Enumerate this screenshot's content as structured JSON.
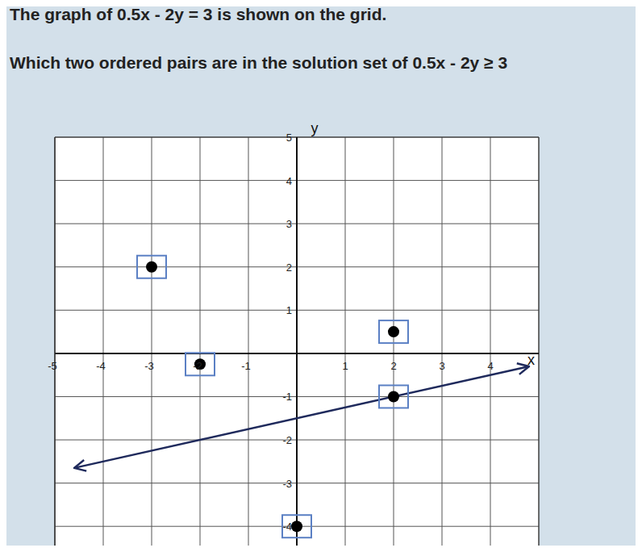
{
  "chart_data": {
    "type": "scatter",
    "title": "The graph of 0.5x - 2y = 3 is shown on the grid.",
    "subtitle": "Which two ordered pairs are in the solution set of 0.5x - 2y ≥ 3",
    "x_label": "x",
    "y_label": "y",
    "xlim": [
      -5,
      5
    ],
    "ylim": [
      -4.5,
      5
    ],
    "xticks": [
      -5,
      -4,
      -3,
      -2,
      -1,
      1,
      2,
      3,
      4
    ],
    "yticks": [
      -4,
      -3,
      -2,
      -1,
      1,
      2,
      3,
      4,
      5
    ],
    "grid": true,
    "series": [
      {
        "type": "line",
        "color": "#1f2a5c",
        "marker": "arrow",
        "x": [
          -4.6,
          4.8
        ],
        "values": [
          -2.65,
          -0.3
        ]
      },
      {
        "type": "scatter",
        "color": "#000000",
        "marker": "boxed",
        "x": [
          -3,
          -2,
          2,
          2,
          0
        ],
        "values": [
          2,
          -0.25,
          0.5,
          -1,
          -4
        ]
      }
    ]
  }
}
